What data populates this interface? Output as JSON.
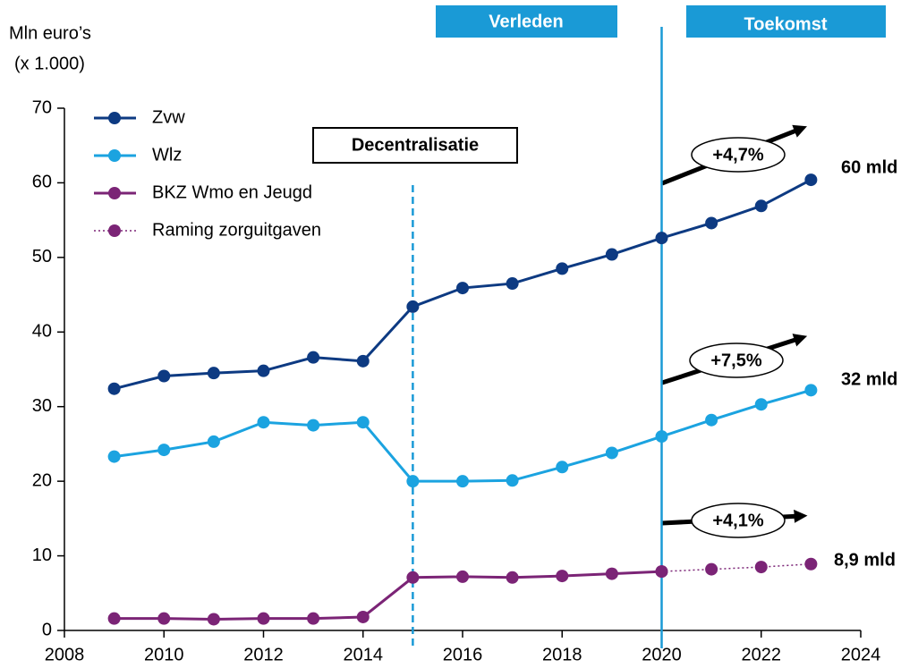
{
  "chart_data": {
    "type": "line",
    "y_label": [
      "Mln euro’s",
      "(x 1.000)"
    ],
    "headers": [
      "Verleden",
      "Toekomst"
    ],
    "event_label": "Decentralisatie",
    "reference_lines": [
      {
        "x": 2015,
        "style": "dashed",
        "color": "#1a9ad6"
      },
      {
        "x": 2020,
        "style": "solid",
        "color": "#1a9ad6"
      }
    ],
    "growth_labels": [
      "+4,7%",
      "+7,5%",
      "+4,1%"
    ],
    "end_labels": [
      "60 mld",
      "32 mld",
      "8,9 mld"
    ],
    "x": [
      2009,
      2010,
      2011,
      2012,
      2013,
      2014,
      2015,
      2016,
      2017,
      2018,
      2019,
      2020,
      2021,
      2022,
      2023
    ],
    "series": [
      {
        "name": "Zvw",
        "color": "#0d3a82",
        "line_style": "solid",
        "values": [
          32.4,
          34.1,
          34.5,
          34.8,
          36.6,
          36.1,
          43.4,
          45.9,
          46.5,
          48.5,
          50.4,
          52.6,
          54.6,
          56.9,
          60.4
        ]
      },
      {
        "name": "Wlz",
        "color": "#1ba3e0",
        "line_style": "solid",
        "values": [
          23.3,
          24.2,
          25.3,
          27.9,
          27.5,
          27.9,
          20.0,
          20.0,
          20.1,
          21.9,
          23.8,
          26.0,
          28.2,
          30.3,
          32.2
        ]
      },
      {
        "name": "BKZ Wmo en Jeugd",
        "color": "#7b2476",
        "line_style": "solid",
        "values": [
          1.6,
          1.6,
          1.5,
          1.6,
          1.6,
          1.8,
          7.1,
          7.2,
          7.1,
          7.3,
          7.6,
          7.9,
          null,
          null,
          null
        ]
      },
      {
        "name": "Raming zorguitgaven",
        "color": "#7b2476",
        "line_style": "dotted",
        "values": [
          null,
          null,
          null,
          null,
          null,
          null,
          null,
          null,
          null,
          null,
          null,
          7.9,
          8.2,
          8.5,
          8.9
        ]
      }
    ],
    "xlim": [
      2008,
      2024
    ],
    "xticks": [
      2008,
      2010,
      2012,
      2014,
      2016,
      2018,
      2020,
      2022,
      2024
    ],
    "ylim": [
      0,
      70
    ],
    "yticks": [
      0,
      10,
      20,
      30,
      40,
      50,
      60,
      70
    ],
    "grid": false
  }
}
